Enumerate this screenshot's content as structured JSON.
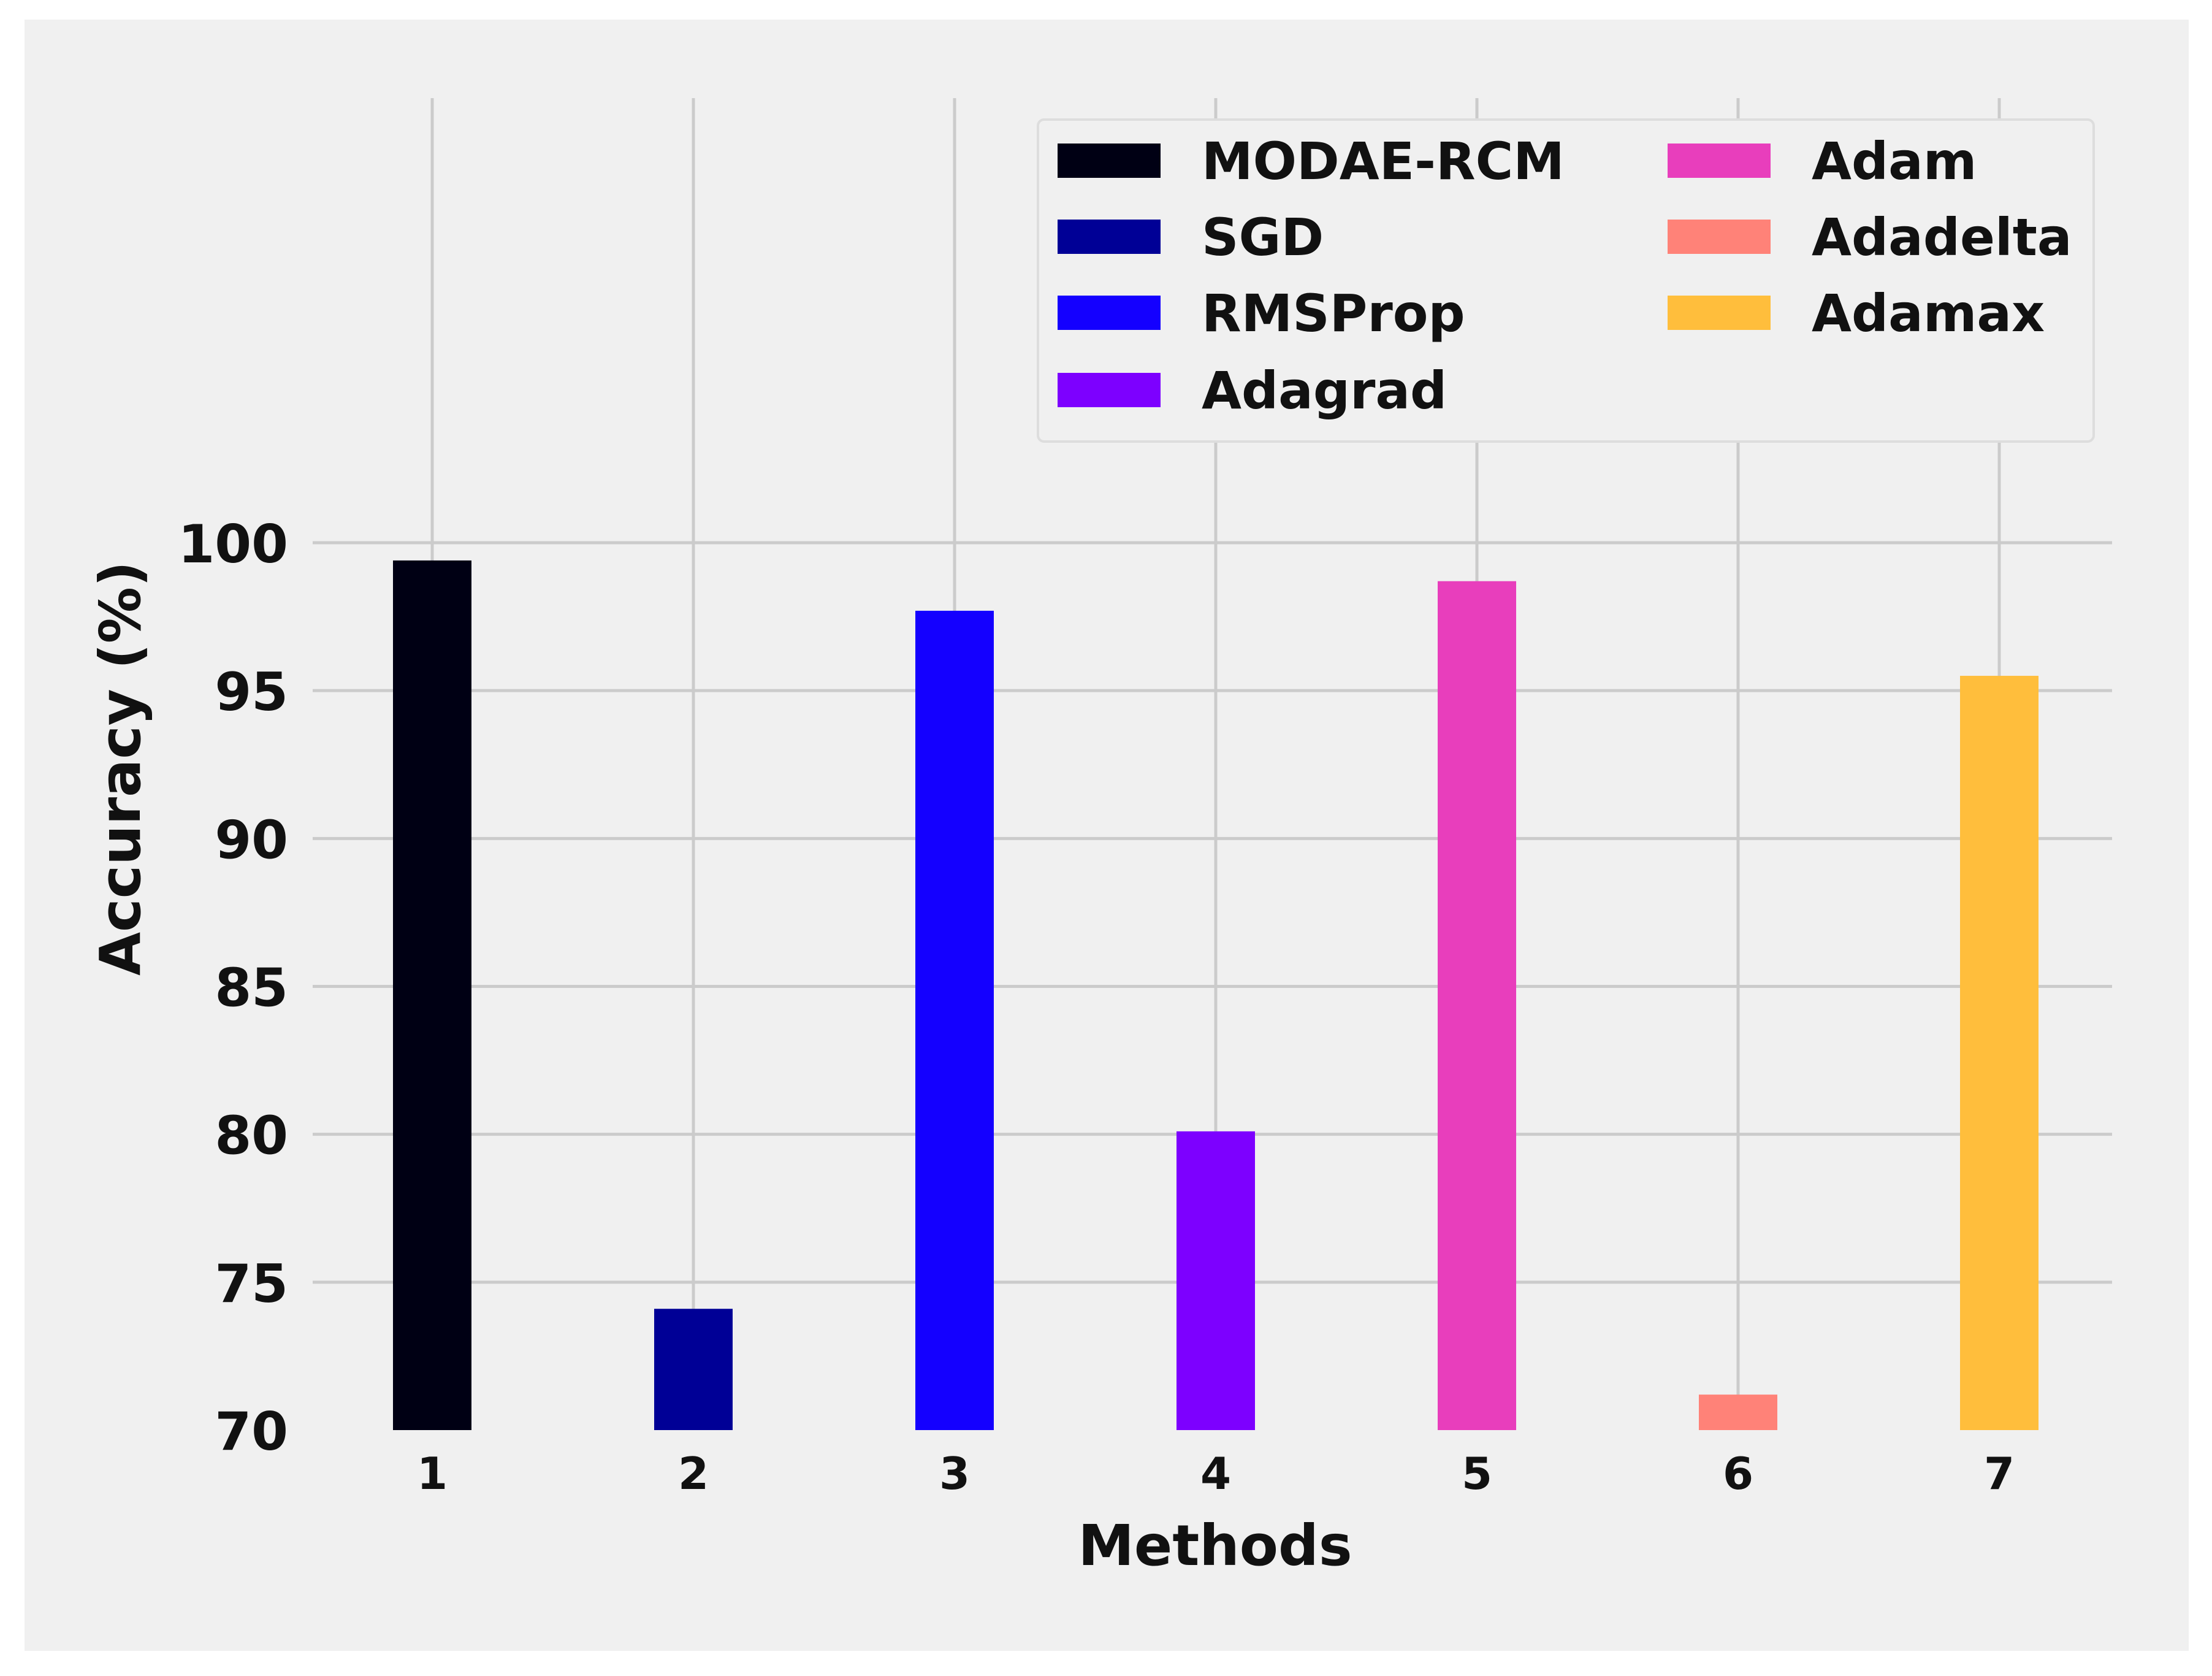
{
  "chart_data": {
    "type": "bar",
    "xlabel": "Methods",
    "ylabel": "Accuracy (%)",
    "ylim": [
      70,
      100
    ],
    "yticks": [
      70,
      75,
      80,
      85,
      90,
      95,
      100
    ],
    "categories": [
      "1",
      "2",
      "3",
      "4",
      "5",
      "6",
      "7"
    ],
    "grid": true,
    "legend_position": "top-right",
    "series": [
      {
        "name": "MODAE-RCM",
        "category": "1",
        "value": 99.4,
        "color": "#000014"
      },
      {
        "name": "SGD",
        "category": "2",
        "value": 74.1,
        "color": "#000096"
      },
      {
        "name": "RMSProp",
        "category": "3",
        "value": 97.7,
        "color": "#1400FF"
      },
      {
        "name": "Adagrad",
        "category": "4",
        "value": 80.1,
        "color": "#7D00FF"
      },
      {
        "name": "Adam",
        "category": "5",
        "value": 98.7,
        "color": "#E83EBC"
      },
      {
        "name": "Adadelta",
        "category": "6",
        "value": 71.2,
        "color": "#FF8278"
      },
      {
        "name": "Adamax",
        "category": "7",
        "value": 95.5,
        "color": "#FFBE3C"
      }
    ],
    "background_color": "#F0F0F0",
    "grid_color": "#CBCBCB"
  }
}
